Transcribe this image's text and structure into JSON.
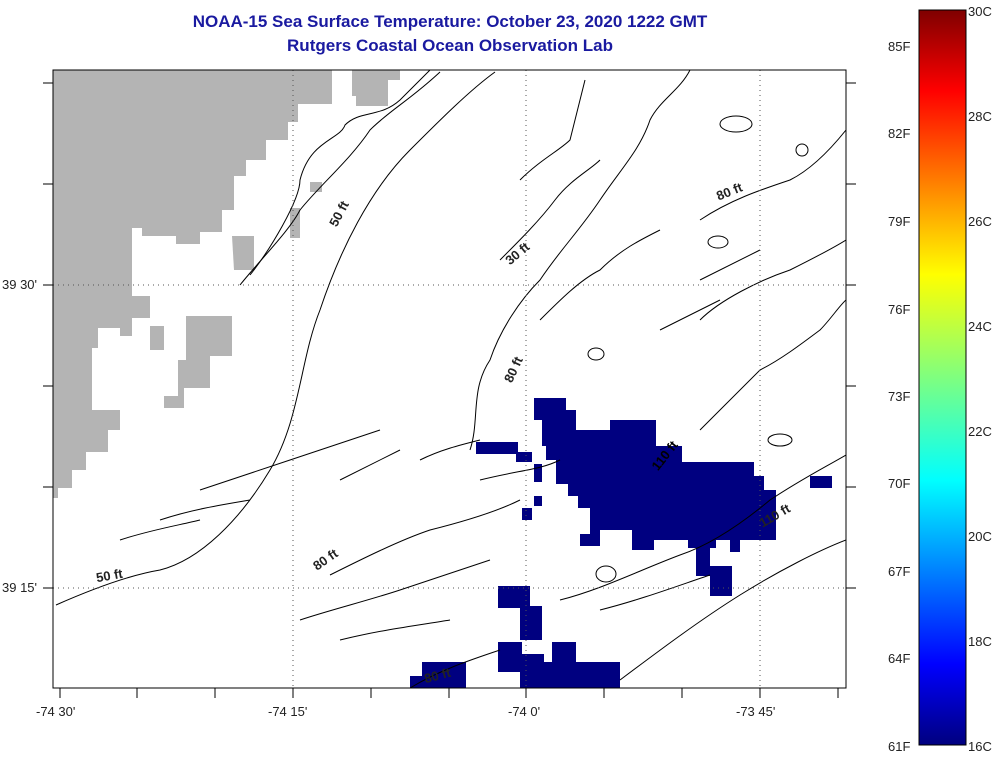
{
  "header": {
    "title": "NOAA-15 Sea Surface Temperature:  October 23, 2020 1222 GMT",
    "subtitle": "Rutgers Coastal Ocean Observation Lab"
  },
  "axes": {
    "lat_labels": [
      "39 30'",
      "39 15'"
    ],
    "lon_labels": [
      "-74 30'",
      "-74 15'",
      "-74 0'",
      "-73 45'"
    ]
  },
  "contours": {
    "labels": [
      "50 ft",
      "50 ft",
      "80 ft",
      "80 ft",
      "30 ft",
      "80 ft",
      "80 ft",
      "110 ft",
      "110 ft"
    ]
  },
  "colorbar": {
    "celsius_labels": [
      "30C",
      "28C",
      "26C",
      "24C",
      "22C",
      "20C",
      "18C",
      "16C"
    ],
    "fahrenheit_labels": [
      "85F",
      "82F",
      "79F",
      "76F",
      "73F",
      "70F",
      "67F",
      "64F",
      "61F"
    ],
    "range_c": [
      16,
      30
    ]
  },
  "colors": {
    "title": "#1a1aa0",
    "land": "#b4b4b4",
    "sst_patch": "#000080"
  }
}
